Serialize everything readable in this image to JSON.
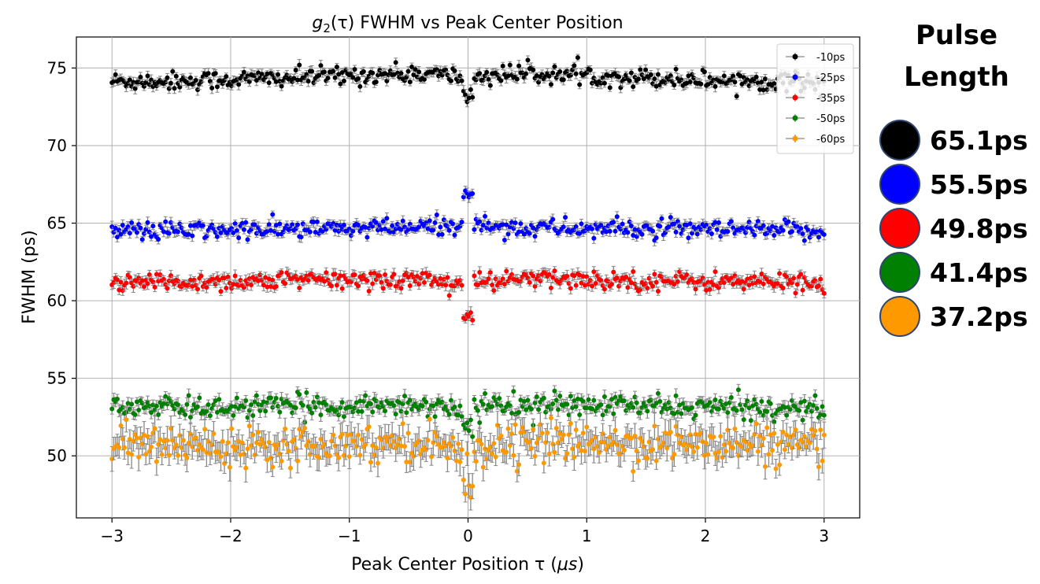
{
  "chart_data": {
    "type": "scatter",
    "title_main": "g",
    "title_sub": "2",
    "title_rest": "(τ) FWHM vs Peak Center Position",
    "xlabel_main": "Peak Center Position τ (",
    "xlabel_mu": "μs",
    "xlabel_close": ")",
    "ylabel": "FWHM (ps)",
    "xlim": [
      -3.3,
      3.3
    ],
    "ylim": [
      46,
      77
    ],
    "xticks": [
      -3,
      -2,
      -1,
      0,
      1,
      2,
      3
    ],
    "xtick_labels": [
      "−3",
      "−2",
      "−1",
      "0",
      "1",
      "2",
      "3"
    ],
    "yticks": [
      50,
      55,
      60,
      65,
      70,
      75
    ],
    "ytick_labels": [
      "50",
      "55",
      "60",
      "65",
      "70",
      "75"
    ],
    "grid": true,
    "legend_position": "top-right",
    "x_range": [
      -3,
      3
    ],
    "series": [
      {
        "name": "-10ps",
        "color": "#000000",
        "errcolor": "#888888",
        "mean": 74.4,
        "noise": 0.3,
        "err": 0.28,
        "center_dip": 1.5
      },
      {
        "name": "-25ps",
        "color": "#0000ff",
        "errcolor": "#888888",
        "mean": 64.6,
        "noise": 0.3,
        "err": 0.28,
        "center_dip": -2.0
      },
      {
        "name": "-35ps",
        "color": "#ff0000",
        "errcolor": "#888888",
        "mean": 61.3,
        "noise": 0.3,
        "err": 0.3,
        "center_dip": 2.4
      },
      {
        "name": "-50ps",
        "color": "#008000",
        "errcolor": "#888888",
        "mean": 53.2,
        "noise": 0.35,
        "err": 0.35,
        "center_dip": 1.5
      },
      {
        "name": "-60ps",
        "color": "#ff9900",
        "errcolor": "#888888",
        "mean": 50.8,
        "noise": 0.6,
        "err": 0.7,
        "center_dip": 2.8
      }
    ]
  },
  "side_panel": {
    "heading_line1": "Pulse",
    "heading_line2": "Length",
    "items": [
      {
        "label": "65.1ps",
        "color": "#000000"
      },
      {
        "label": "55.5ps",
        "color": "#0000ff"
      },
      {
        "label": "49.8ps",
        "color": "#ff0000"
      },
      {
        "label": "41.4ps",
        "color": "#008000"
      },
      {
        "label": "37.2ps",
        "color": "#ff9900"
      }
    ],
    "circle_border": "#2f4470"
  }
}
